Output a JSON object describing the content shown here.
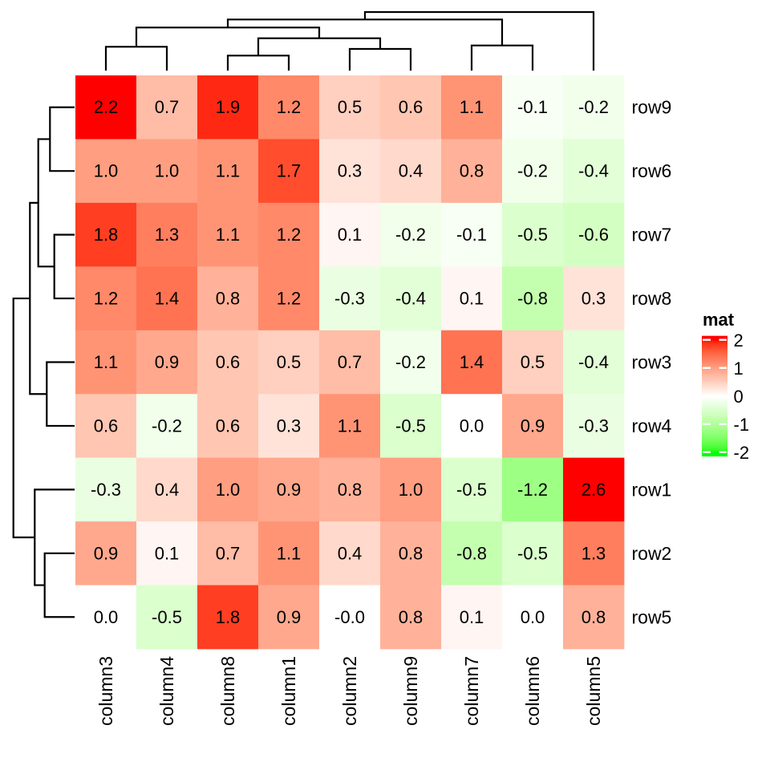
{
  "chart_data": {
    "type": "heatmap",
    "legend": {
      "title": "mat",
      "tick_labels": [
        "2",
        "1",
        "0",
        "-1",
        "-2"
      ],
      "tick_values": [
        2,
        1,
        0,
        -1,
        -2
      ],
      "domain_min": -2,
      "domain_max": 2,
      "position": "right"
    },
    "colors": {
      "max_color": "#FF0000",
      "mid_color": "#FFFFFF",
      "min_color": "#00FF00",
      "interpolation": "lab",
      "dendrogram_line": "#000000",
      "cell_text": "#000000",
      "background": "#FFFFFF"
    },
    "columns": [
      "column3",
      "column4",
      "column8",
      "column1",
      "column2",
      "column9",
      "column7",
      "column6",
      "column5"
    ],
    "rows": [
      "row9",
      "row6",
      "row7",
      "row8",
      "row3",
      "row4",
      "row1",
      "row2",
      "row5"
    ],
    "values": [
      [
        2.2,
        0.7,
        1.9,
        1.2,
        0.5,
        0.6,
        1.1,
        -0.1,
        -0.2
      ],
      [
        1.0,
        1.0,
        1.1,
        1.7,
        0.3,
        0.4,
        0.8,
        -0.2,
        -0.4
      ],
      [
        1.8,
        1.3,
        1.1,
        1.2,
        0.1,
        -0.2,
        -0.1,
        -0.5,
        -0.6
      ],
      [
        1.2,
        1.4,
        0.8,
        1.2,
        -0.3,
        -0.4,
        0.1,
        -0.8,
        0.3
      ],
      [
        1.1,
        0.9,
        0.6,
        0.5,
        0.7,
        -0.2,
        1.4,
        0.5,
        -0.4
      ],
      [
        0.6,
        -0.2,
        0.6,
        0.3,
        1.1,
        -0.5,
        0.0,
        0.9,
        -0.3
      ],
      [
        -0.3,
        0.4,
        1.0,
        0.9,
        0.8,
        1.0,
        -0.5,
        -1.2,
        2.6
      ],
      [
        0.9,
        0.1,
        0.7,
        1.1,
        0.4,
        0.8,
        -0.8,
        -0.5,
        1.3
      ],
      [
        0.0,
        -0.5,
        1.8,
        0.9,
        0.0,
        0.8,
        0.1,
        0.0,
        0.8
      ]
    ],
    "cell_labels": [
      [
        "2.2",
        "0.7",
        "1.9",
        "1.2",
        "0.5",
        "0.6",
        "1.1",
        "-0.1",
        "-0.2"
      ],
      [
        "1.0",
        "1.0",
        "1.1",
        "1.7",
        "0.3",
        "0.4",
        "0.8",
        "-0.2",
        "-0.4"
      ],
      [
        "1.8",
        "1.3",
        "1.1",
        "1.2",
        "0.1",
        "-0.2",
        "-0.1",
        "-0.5",
        "-0.6"
      ],
      [
        "1.2",
        "1.4",
        "0.8",
        "1.2",
        "-0.3",
        "-0.4",
        "0.1",
        "-0.8",
        "0.3"
      ],
      [
        "1.1",
        "0.9",
        "0.6",
        "0.5",
        "0.7",
        "-0.2",
        "1.4",
        "0.5",
        "-0.4"
      ],
      [
        "0.6",
        "-0.2",
        "0.6",
        "0.3",
        "1.1",
        "-0.5",
        "0.0",
        "0.9",
        "-0.3"
      ],
      [
        "-0.3",
        "0.4",
        "1.0",
        "0.9",
        "0.8",
        "1.0",
        "-0.5",
        "-1.2",
        "2.6"
      ],
      [
        "0.9",
        "0.1",
        "0.7",
        "1.1",
        "0.4",
        "0.8",
        "-0.8",
        "-0.5",
        "1.3"
      ],
      [
        "0.0",
        "-0.5",
        "1.8",
        "0.9",
        "-0.0",
        "0.8",
        "0.1",
        "0.0",
        "0.8"
      ]
    ],
    "column_dendrogram": {
      "pos": 15,
      "children": [
        {
          "pos": 24.3,
          "children": [
            {
              "pos": 34.3,
              "children": [
                {
                  "pos": 58.3,
                  "children": [
                    {
                      "leaf": 0
                    },
                    {
                      "leaf": 1
                    }
                  ]
                },
                {
                  "pos": 47.7,
                  "children": [
                    {
                      "pos": 69.3,
                      "children": [
                        {
                          "leaf": 2
                        },
                        {
                          "leaf": 3
                        }
                      ]
                    },
                    {
                      "pos": 61.0,
                      "children": [
                        {
                          "leaf": 4
                        },
                        {
                          "leaf": 5
                        }
                      ]
                    }
                  ]
                }
              ]
            },
            {
              "pos": 56.7,
              "children": [
                {
                  "leaf": 6
                },
                {
                  "leaf": 7
                }
              ]
            }
          ]
        },
        {
          "leaf": 8
        }
      ]
    },
    "row_dendrogram": {
      "pos": 16.7,
      "children": [
        {
          "pos": 37.3,
          "children": [
            {
              "pos": 47.7,
              "children": [
                {
                  "pos": 62.3,
                  "children": [
                    {
                      "leaf": 0
                    },
                    {
                      "leaf": 1
                    }
                  ]
                },
                {
                  "pos": 67.7,
                  "children": [
                    {
                      "leaf": 2
                    },
                    {
                      "leaf": 3
                    }
                  ]
                }
              ]
            },
            {
              "pos": 58.3,
              "children": [
                {
                  "leaf": 4
                },
                {
                  "leaf": 5
                }
              ]
            }
          ]
        },
        {
          "pos": 43.3,
          "children": [
            {
              "leaf": 6
            },
            {
              "pos": 55.7,
              "children": [
                {
                  "leaf": 7
                },
                {
                  "leaf": 8
                }
              ]
            }
          ]
        }
      ]
    }
  }
}
